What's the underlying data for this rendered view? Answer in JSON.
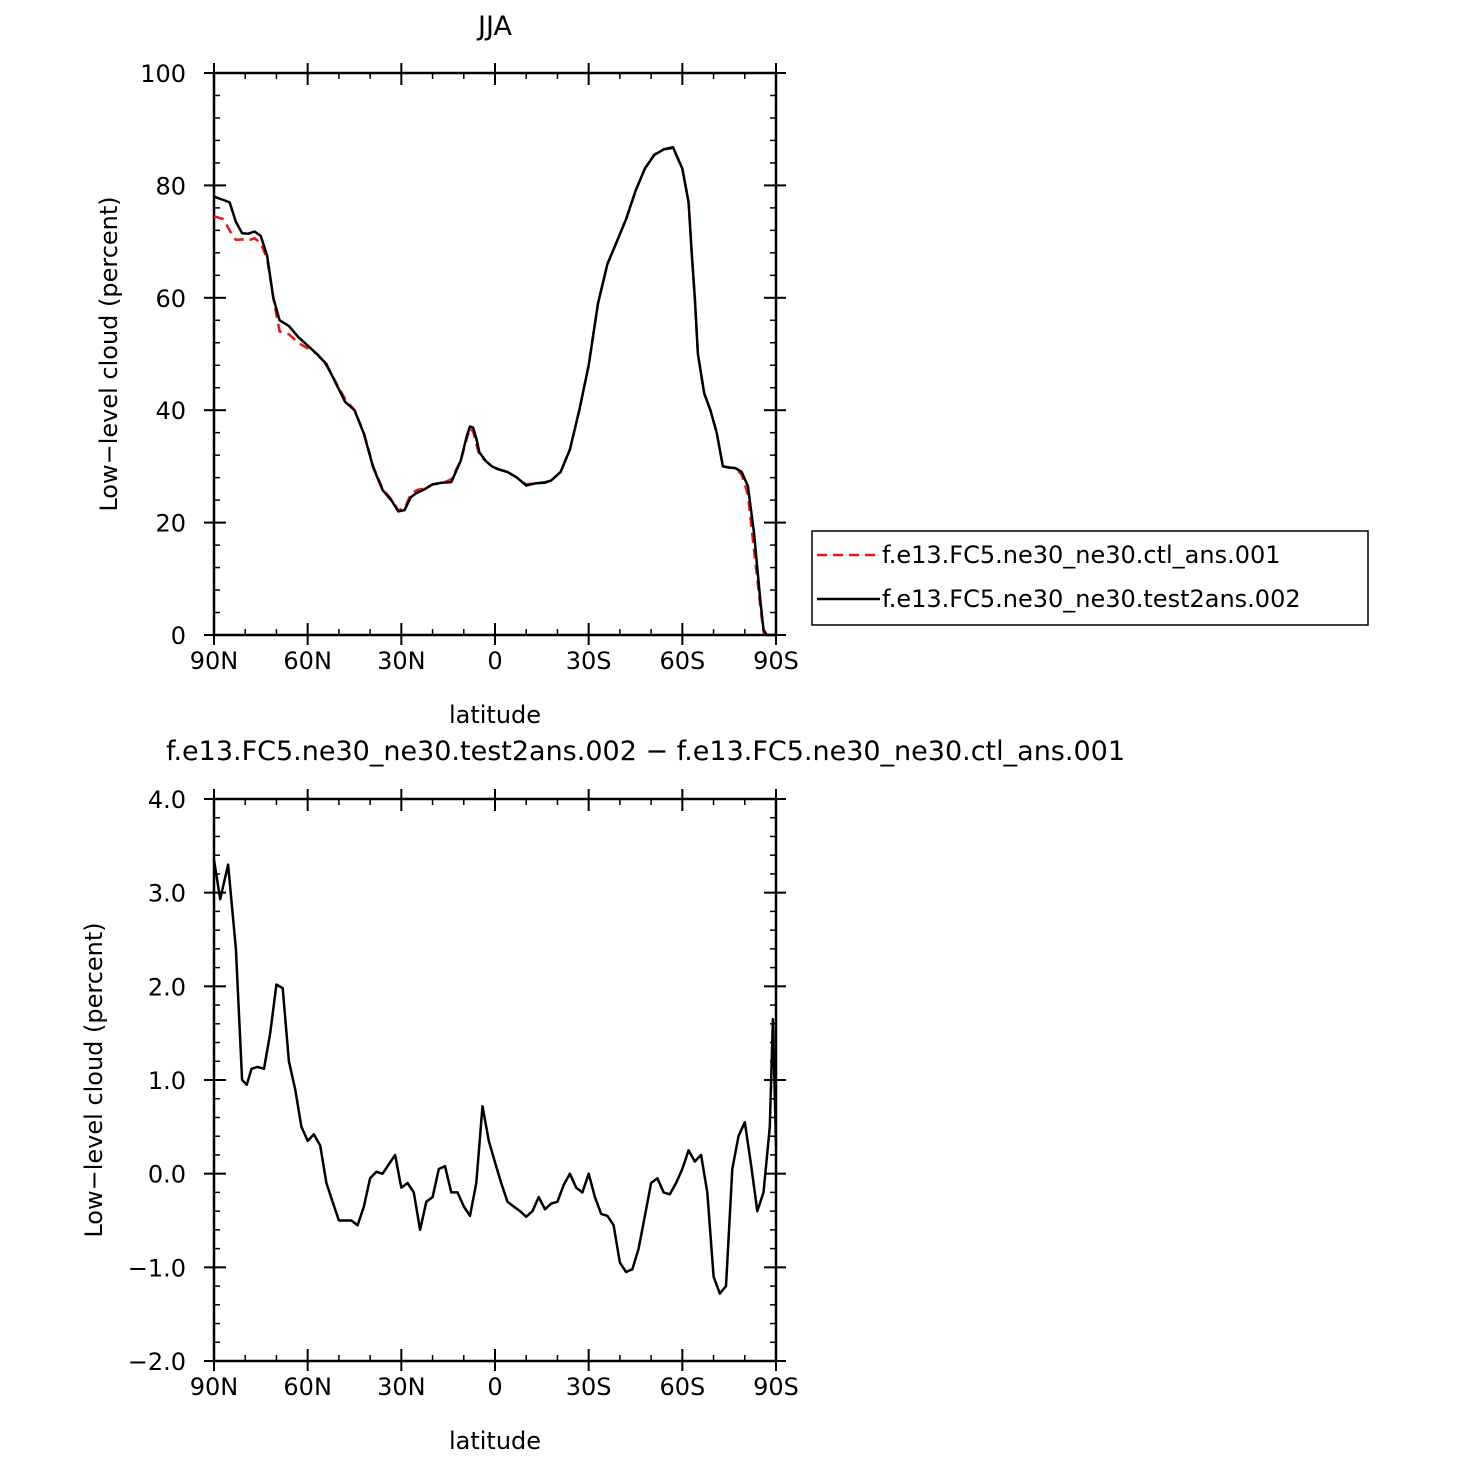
{
  "chart_data": [
    {
      "type": "line",
      "title": "JJA",
      "xlabel": "latitude",
      "ylabel": "Low−level cloud (percent)",
      "xlim": [
        90,
        -90
      ],
      "ylim": [
        0,
        100
      ],
      "xticks": [
        90,
        60,
        30,
        0,
        -30,
        -60,
        -90
      ],
      "xtick_labels": [
        "90N",
        "60N",
        "30N",
        "0",
        "30S",
        "60S",
        "90S"
      ],
      "yticks": [
        0,
        20,
        40,
        60,
        80,
        100
      ],
      "ytick_labels": [
        "0",
        "20",
        "40",
        "60",
        "80",
        "100"
      ],
      "legend_position": "right",
      "series": [
        {
          "name": "f.e13.FC5.ne30_ne30.ctl_ans.001",
          "color": "#e41a1c",
          "dash": "dashed",
          "x": [
            90,
            87,
            85,
            83,
            81,
            79,
            77,
            75,
            73,
            71,
            69,
            66,
            63,
            60,
            57,
            54,
            51,
            48,
            45,
            42,
            39,
            36,
            33,
            31,
            29,
            27,
            25,
            23,
            20,
            17,
            14,
            11,
            9,
            8,
            7,
            6,
            5,
            3,
            1,
            -1,
            -4,
            -7,
            -10,
            -13,
            -16,
            -18,
            -21,
            -24,
            -27,
            -30,
            -33,
            -36,
            -39,
            -42,
            -45,
            -48,
            -51,
            -54,
            -57,
            -60,
            -62,
            -63,
            -64,
            -65,
            -67,
            -69,
            -71,
            -73,
            -75,
            -77,
            -79,
            -81,
            -83,
            -85,
            -86,
            -87,
            -88,
            -89,
            -90
          ],
          "y": [
            74.5,
            74,
            72,
            70.3,
            70.4,
            70.2,
            70.6,
            69.7,
            67,
            60,
            54,
            53.5,
            52,
            51,
            50,
            48,
            45,
            42,
            40,
            36,
            30,
            26,
            24,
            22.2,
            22.5,
            25,
            25.8,
            26,
            26.8,
            27,
            27.7,
            31,
            35,
            36.8,
            36.2,
            34,
            32,
            31,
            30,
            29.5,
            29,
            28,
            26.8,
            27,
            27.2,
            27.5,
            29,
            33,
            40,
            48,
            59,
            66,
            70,
            74,
            79,
            83,
            85.5,
            86.4,
            86.6,
            83,
            77,
            68,
            60,
            50,
            43,
            40,
            36,
            30,
            29.8,
            29.7,
            28.5,
            25,
            15,
            5,
            0.5,
            0,
            0,
            0,
            0
          ]
        },
        {
          "name": "f.e13.FC5.ne30_ne30.test2ans.002",
          "color": "#000000",
          "dash": "solid",
          "x": [
            90,
            87,
            85,
            83,
            81,
            79,
            77,
            75,
            73,
            71,
            69,
            66,
            63,
            60,
            57,
            54,
            51,
            48,
            45,
            42,
            39,
            36,
            33,
            31,
            29,
            27,
            25,
            23,
            20,
            17,
            14,
            11,
            9,
            8,
            7,
            6,
            5,
            3,
            1,
            -1,
            -4,
            -7,
            -10,
            -13,
            -16,
            -18,
            -21,
            -24,
            -27,
            -30,
            -33,
            -36,
            -39,
            -42,
            -45,
            -48,
            -51,
            -54,
            -57,
            -60,
            -62,
            -63,
            -64,
            -65,
            -67,
            -69,
            -71,
            -73,
            -75,
            -77,
            -79,
            -81,
            -83,
            -85,
            -86,
            -87,
            -88,
            -89,
            -90
          ],
          "y": [
            78,
            77.4,
            77,
            73.5,
            71.5,
            71.4,
            71.8,
            71,
            67.5,
            60,
            56,
            55,
            53,
            51.5,
            50,
            48.2,
            44.8,
            41.5,
            40,
            35.8,
            29.8,
            25.8,
            23.8,
            22,
            22.2,
            24.5,
            25.3,
            25.8,
            26.8,
            27.1,
            27.2,
            31,
            35.5,
            37.1,
            36.9,
            35,
            32.5,
            31,
            30,
            29.5,
            29,
            28,
            26.6,
            27,
            27.1,
            27.5,
            29,
            33,
            40,
            48,
            59,
            66,
            70,
            74,
            79,
            83,
            85.4,
            86.4,
            86.8,
            83,
            77,
            68,
            60,
            50,
            43,
            40,
            36,
            30,
            29.8,
            29.7,
            29,
            26.5,
            18,
            6,
            1,
            0,
            0,
            0,
            0
          ]
        }
      ]
    },
    {
      "type": "line",
      "title": "f.e13.FC5.ne30_ne30.test2ans.002 − f.e13.FC5.ne30_ne30.ctl_ans.001",
      "xlabel": "latitude",
      "ylabel": "Low−level cloud (percent)",
      "xlim": [
        90,
        -90
      ],
      "ylim": [
        -2.0,
        4.0
      ],
      "xticks": [
        90,
        60,
        30,
        0,
        -30,
        -60,
        -90
      ],
      "xtick_labels": [
        "90N",
        "60N",
        "30N",
        "0",
        "30S",
        "60S",
        "90S"
      ],
      "yticks": [
        -2,
        -1,
        0,
        1,
        2,
        3,
        4
      ],
      "ytick_labels": [
        "−2.0",
        "−1.0",
        "0.0",
        "1.0",
        "2.0",
        "3.0",
        "4.0"
      ],
      "series": [
        {
          "color": "#000000",
          "dash": "solid",
          "x": [
            90,
            88,
            85.5,
            83,
            81,
            79.5,
            78,
            76,
            74,
            72,
            70,
            68,
            66,
            64,
            62,
            60,
            58,
            56,
            54,
            52,
            50,
            48,
            46,
            44,
            42,
            40,
            38,
            36,
            34,
            32,
            30,
            28,
            26,
            24,
            22,
            20,
            18,
            16,
            14,
            12,
            10,
            8,
            6,
            4,
            2,
            0,
            -2,
            -4,
            -6,
            -8,
            -10,
            -12,
            -14,
            -16,
            -18,
            -20,
            -22,
            -24,
            -26,
            -28,
            -30,
            -32,
            -34,
            -36,
            -38,
            -40,
            -42,
            -44,
            -46,
            -48,
            -50,
            -52,
            -54,
            -56,
            -58,
            -60,
            -62,
            -64,
            -66,
            -68,
            -70,
            -72,
            -74,
            -76,
            -78,
            -80,
            -82,
            -84,
            -86,
            -88,
            -89,
            -90
          ],
          "y": [
            3.35,
            2.93,
            3.3,
            2.4,
            1.0,
            0.95,
            1.12,
            1.14,
            1.12,
            1.5,
            2.02,
            1.98,
            1.2,
            0.9,
            0.5,
            0.35,
            0.42,
            0.3,
            -0.1,
            -0.3,
            -0.5,
            -0.5,
            -0.5,
            -0.55,
            -0.35,
            -0.05,
            0.02,
            0.0,
            0.1,
            0.2,
            -0.15,
            -0.1,
            -0.2,
            -0.6,
            -0.3,
            -0.25,
            0.05,
            0.08,
            -0.2,
            -0.2,
            -0.35,
            -0.45,
            -0.1,
            0.72,
            0.35,
            0.12,
            -0.1,
            -0.3,
            -0.35,
            -0.4,
            -0.46,
            -0.4,
            -0.25,
            -0.38,
            -0.32,
            -0.3,
            -0.12,
            0.0,
            -0.15,
            -0.2,
            0.0,
            -0.25,
            -0.43,
            -0.45,
            -0.55,
            -0.95,
            -1.05,
            -1.02,
            -0.8,
            -0.45,
            -0.1,
            -0.05,
            -0.2,
            -0.22,
            -0.1,
            0.05,
            0.25,
            0.13,
            0.2,
            -0.2,
            -1.1,
            -1.28,
            -1.2,
            0.05,
            0.4,
            0.55,
            0.1,
            -0.4,
            -0.2,
            0.5,
            1.65,
            0.3
          ]
        }
      ]
    }
  ]
}
